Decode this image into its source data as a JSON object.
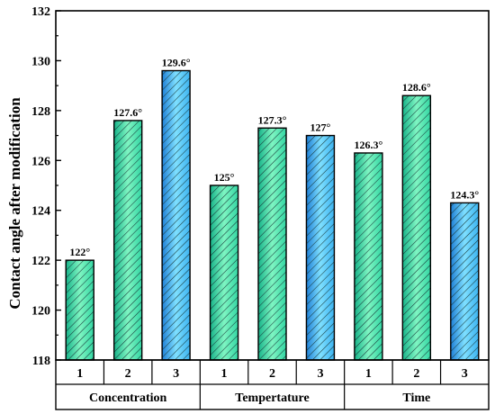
{
  "chart_data": {
    "type": "bar",
    "ylabel": "Contact angle after modification",
    "xlabel": "",
    "title": "",
    "ylim": [
      118,
      132
    ],
    "yticks": [
      118,
      120,
      122,
      124,
      126,
      128,
      130,
      132
    ],
    "grid": false,
    "legend": "none",
    "groups": [
      {
        "name": "Concentration",
        "bars": [
          {
            "category": "1",
            "value": 122,
            "label": "122°",
            "fill": "green"
          },
          {
            "category": "2",
            "value": 127.6,
            "label": "127.6°",
            "fill": "green"
          },
          {
            "category": "3",
            "value": 129.6,
            "label": "129.6°",
            "fill": "blue"
          }
        ]
      },
      {
        "name": "Tempertature",
        "bars": [
          {
            "category": "1",
            "value": 125,
            "label": "125°",
            "fill": "green"
          },
          {
            "category": "2",
            "value": 127.3,
            "label": "127.3°",
            "fill": "green"
          },
          {
            "category": "3",
            "value": 127,
            "label": "127°",
            "fill": "blue"
          }
        ]
      },
      {
        "name": "Time",
        "bars": [
          {
            "category": "1",
            "value": 126.3,
            "label": "126.3°",
            "fill": "green"
          },
          {
            "category": "2",
            "value": 128.6,
            "label": "128.6°",
            "fill": "green"
          },
          {
            "category": "3",
            "value": 124.3,
            "label": "124.3°",
            "fill": "blue"
          }
        ]
      }
    ],
    "colors": {
      "green_light": "#7ff5c2",
      "green_mid": "#33d6a3",
      "green_dark": "#17b389",
      "blue_light": "#7fe0ff",
      "blue_mid": "#3bb2f0",
      "blue_dark": "#1e7fd6",
      "hatch": "#1a3a3a"
    }
  }
}
